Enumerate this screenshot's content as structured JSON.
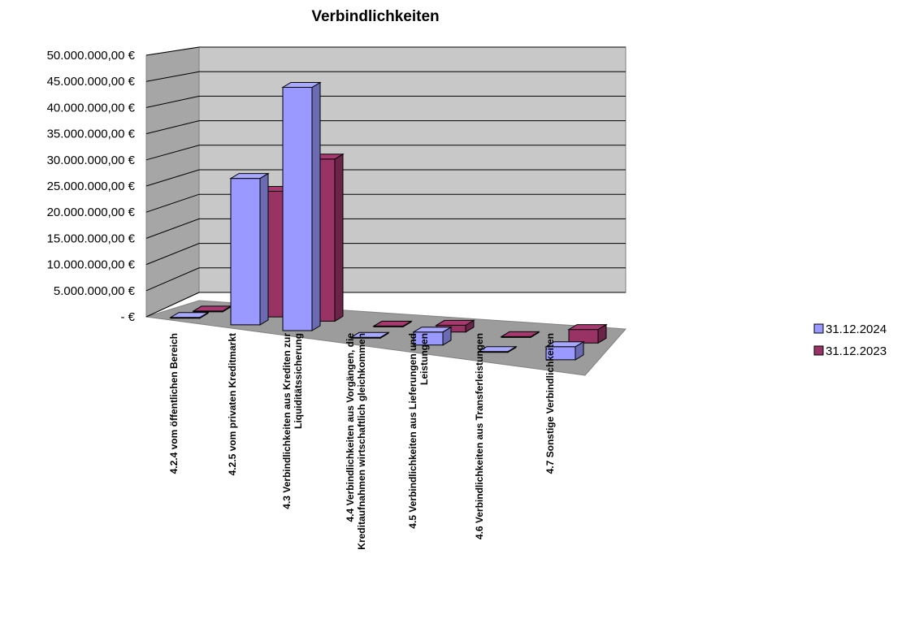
{
  "chart_data": {
    "type": "bar",
    "title": "Verbindlichkeiten",
    "xlabel": "",
    "ylabel": "",
    "ylim": [
      0,
      50000000
    ],
    "y_tick_labels": [
      "-  €",
      "5.000.000,00 €",
      "10.000.000,00 €",
      "15.000.000,00 €",
      "20.000.000,00 €",
      "25.000.000,00 €",
      "30.000.000,00 €",
      "35.000.000,00 €",
      "40.000.000,00 €",
      "45.000.000,00 €",
      "50.000.000,00 €"
    ],
    "categories": [
      [
        "4.2.4  vom öffentlichen Bereich"
      ],
      [
        "4.2.5  vom privaten Kreditmarkt"
      ],
      [
        "4.3   Verbindlichkeiten aus Krediten zur",
        "Liquiditätssicherung"
      ],
      [
        "4.4   Verbindlichkeiten aus Vorgängen, die",
        "Kreditaufnahmen wirtschaftlich gleichkommen"
      ],
      [
        "4.5   Verbindlichkeiten aus Lieferungen und",
        "Leistungen"
      ],
      [
        "4.6  Verbindlichkeiten aus Transferleistungen"
      ],
      [
        "4.7  Sonstige Verbindlichkeiten"
      ]
    ],
    "series": [
      {
        "name": "31.12.2024",
        "color": "#9999ff",
        "values": [
          0,
          28000000,
          46500000,
          0,
          2500000,
          0,
          2500000
        ]
      },
      {
        "name": "31.12.2023",
        "color": "#993366",
        "values": [
          0,
          24000000,
          31000000,
          0,
          1300000,
          0,
          2600000
        ]
      }
    ],
    "grid": true,
    "legend_position": "right",
    "projection": "3d-perspective"
  }
}
